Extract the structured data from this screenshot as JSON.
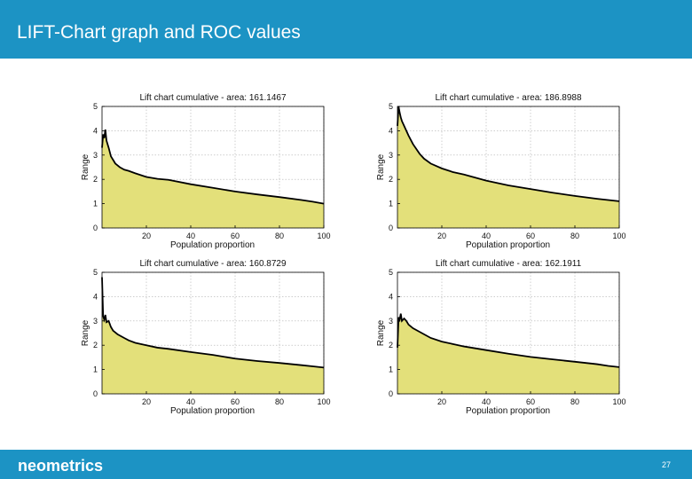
{
  "header": {
    "title": "LIFT-Chart graph and ROC values"
  },
  "footer": {
    "brand": "neometrics",
    "page_number": "27"
  },
  "colors": {
    "header_bg": "#1c93c4",
    "fill": "#e3e07a",
    "line": "#000000",
    "grid": "#b0b0b0"
  },
  "chart_data": [
    {
      "type": "area",
      "title": "Lift chart cumulative - area: 161.1467",
      "xlabel": "Population proportion",
      "ylabel": "Range",
      "xlim": [
        0,
        100
      ],
      "ylim": [
        0,
        5
      ],
      "xticks": [
        "20",
        "40",
        "60",
        "80",
        "100"
      ],
      "yticks": [
        "0",
        "1",
        "2",
        "3",
        "4",
        "5"
      ],
      "grid": true,
      "x": [
        0,
        0.5,
        1,
        1.5,
        2,
        3,
        4,
        5,
        6,
        8,
        10,
        12,
        15,
        20,
        25,
        30,
        40,
        50,
        60,
        70,
        80,
        90,
        95,
        100
      ],
      "y": [
        3.3,
        3.85,
        3.7,
        4.05,
        3.6,
        3.3,
        2.95,
        2.8,
        2.65,
        2.5,
        2.4,
        2.35,
        2.25,
        2.1,
        2.02,
        1.98,
        1.8,
        1.65,
        1.5,
        1.38,
        1.27,
        1.15,
        1.08,
        1.0
      ]
    },
    {
      "type": "area",
      "title": "Lift chart cumulative - area: 186.8988",
      "xlabel": "Population proportion",
      "ylabel": "Range",
      "xlim": [
        0,
        100
      ],
      "ylim": [
        0,
        5
      ],
      "xticks": [
        "20",
        "40",
        "60",
        "80",
        "100"
      ],
      "yticks": [
        "0",
        "1",
        "2",
        "3",
        "4",
        "5"
      ],
      "grid": true,
      "x": [
        0,
        0.5,
        1,
        1.5,
        2,
        3,
        5,
        7,
        10,
        12,
        15,
        20,
        25,
        30,
        40,
        50,
        60,
        70,
        80,
        90,
        95,
        100
      ],
      "y": [
        4.2,
        5.0,
        4.75,
        4.55,
        4.4,
        4.2,
        3.8,
        3.45,
        3.05,
        2.85,
        2.65,
        2.45,
        2.3,
        2.2,
        1.95,
        1.75,
        1.6,
        1.45,
        1.32,
        1.2,
        1.15,
        1.1
      ]
    },
    {
      "type": "area",
      "title": "Lift chart cumulative - area: 160.8729",
      "xlabel": "Population proportion",
      "ylabel": "Range",
      "xlim": [
        0,
        100
      ],
      "ylim": [
        0,
        5
      ],
      "xticks": [
        "20",
        "40",
        "60",
        "80",
        "100"
      ],
      "yticks": [
        "0",
        "1",
        "2",
        "3",
        "4",
        "5"
      ],
      "grid": true,
      "x": [
        0,
        0.5,
        1,
        1.5,
        2,
        3,
        4,
        5,
        7,
        10,
        12,
        15,
        20,
        25,
        30,
        40,
        50,
        60,
        70,
        80,
        90,
        95,
        100
      ],
      "y": [
        4.8,
        3.2,
        3.05,
        3.25,
        2.95,
        3.0,
        2.75,
        2.6,
        2.45,
        2.3,
        2.2,
        2.1,
        2.0,
        1.9,
        1.85,
        1.72,
        1.6,
        1.45,
        1.35,
        1.27,
        1.18,
        1.13,
        1.08
      ]
    },
    {
      "type": "area",
      "title": "Lift chart cumulative - area: 162.1911",
      "xlabel": "Population proportion",
      "ylabel": "Range",
      "xlim": [
        0,
        100
      ],
      "ylim": [
        0,
        5
      ],
      "xticks": [
        "20",
        "40",
        "60",
        "80",
        "100"
      ],
      "yticks": [
        "0",
        "1",
        "2",
        "3",
        "4",
        "5"
      ],
      "grid": true,
      "x": [
        0,
        0.5,
        1,
        1.5,
        2,
        3,
        4,
        5,
        7,
        10,
        12,
        15,
        20,
        25,
        30,
        40,
        50,
        60,
        70,
        80,
        90,
        95,
        100
      ],
      "y": [
        1.9,
        3.15,
        3.05,
        3.3,
        3.0,
        3.1,
        3.0,
        2.85,
        2.7,
        2.55,
        2.45,
        2.3,
        2.15,
        2.05,
        1.95,
        1.8,
        1.65,
        1.52,
        1.42,
        1.32,
        1.22,
        1.15,
        1.1
      ]
    }
  ]
}
